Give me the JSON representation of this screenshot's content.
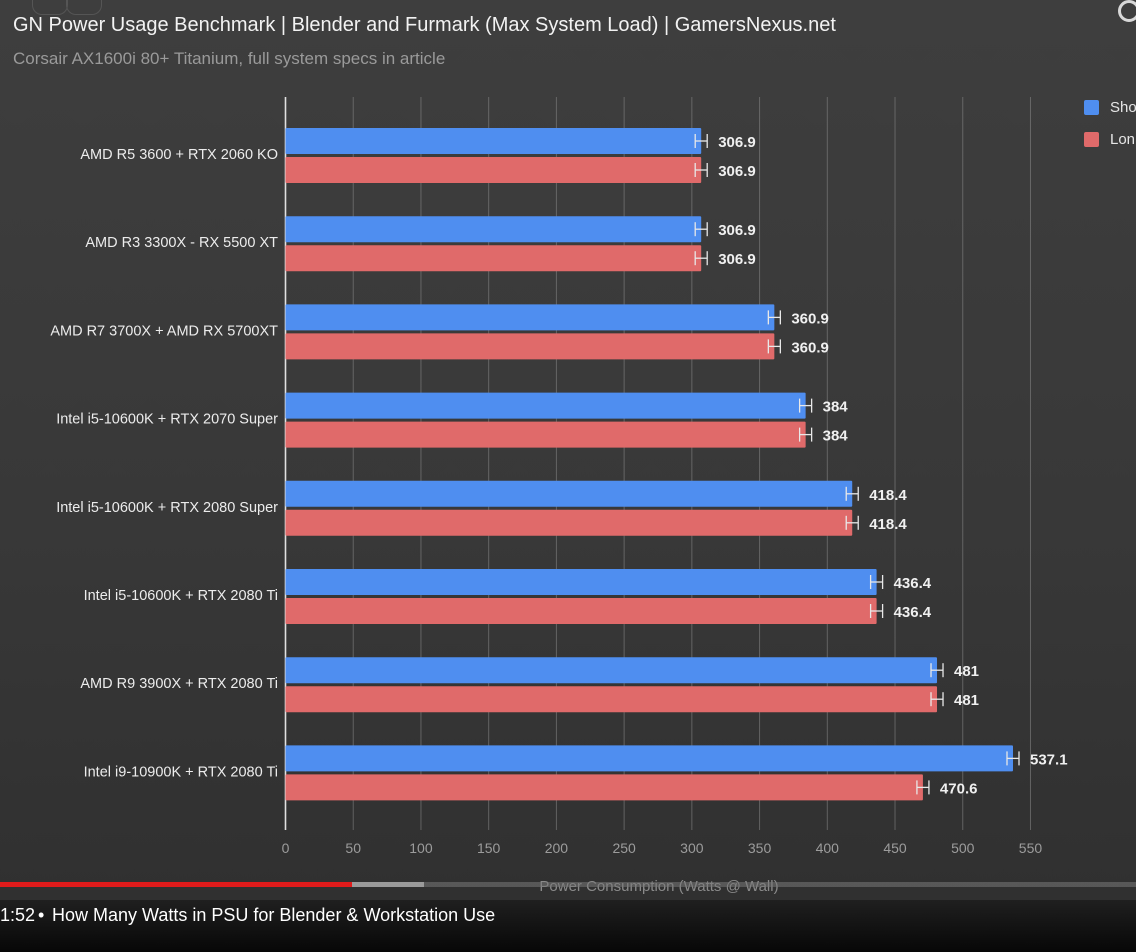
{
  "header": {
    "title": "GN Power Usage Benchmark | Blender and Furmark (Max System Load) | GamersNexus.net",
    "subtitle": "Corsair AX1600i 80+ Titanium, full system specs in article"
  },
  "legend": {
    "items": [
      {
        "label": "Sho",
        "color": "#4f8ef0"
      },
      {
        "label": "Lon",
        "color": "#e06a6a"
      }
    ]
  },
  "player": {
    "timestamp": "1:52",
    "separator": "•",
    "chapter": "How Many Watts in PSU for Blender & Workstation Use",
    "progress_played_fraction": 0.31
  },
  "colors": {
    "series_short": "#4f8ef0",
    "series_long": "#e06a6a",
    "grid": "#8a8a8a",
    "progress_red": "#e01b1b"
  },
  "chart_data": {
    "type": "bar",
    "orientation": "horizontal",
    "title": "GN Power Usage Benchmark | Blender and Furmark (Max System Load) | GamersNexus.net",
    "subtitle": "Corsair AX1600i 80+ Titanium, full system specs in article",
    "xlabel": "Power Consumption (Watts @ Wall)",
    "ylabel": "",
    "xlim": [
      0,
      550
    ],
    "xticks": [
      0,
      50,
      100,
      150,
      200,
      250,
      300,
      350,
      400,
      450,
      500,
      550
    ],
    "grid": true,
    "legend_position": "top-right",
    "categories": [
      "AMD R5 3600 + RTX 2060 KO",
      "AMD R3 3300X - RX 5500 XT",
      "AMD R7 3700X + AMD RX 5700XT",
      "Intel i5-10600K + RTX 2070 Super",
      "Intel i5-10600K + RTX 2080 Super",
      "Intel i5-10600K + RTX 2080 Ti",
      "AMD R9 3900X + RTX 2080 Ti",
      "Intel i9-10900K + RTX 2080 Ti"
    ],
    "series": [
      {
        "name": "Sho",
        "color": "#4f8ef0",
        "values": [
          306.9,
          306.9,
          360.9,
          384,
          418.4,
          436.4,
          481,
          537.1
        ]
      },
      {
        "name": "Lon",
        "color": "#e06a6a",
        "values": [
          306.9,
          306.9,
          360.9,
          384,
          418.4,
          436.4,
          481,
          470.6
        ]
      }
    ],
    "value_labels": [
      [
        "306.9",
        "306.9",
        "360.9",
        "384",
        "418.4",
        "436.4",
        "481",
        "537.1"
      ],
      [
        "306.9",
        "306.9",
        "360.9",
        "384",
        "418.4",
        "436.4",
        "481",
        "470.6"
      ]
    ]
  }
}
